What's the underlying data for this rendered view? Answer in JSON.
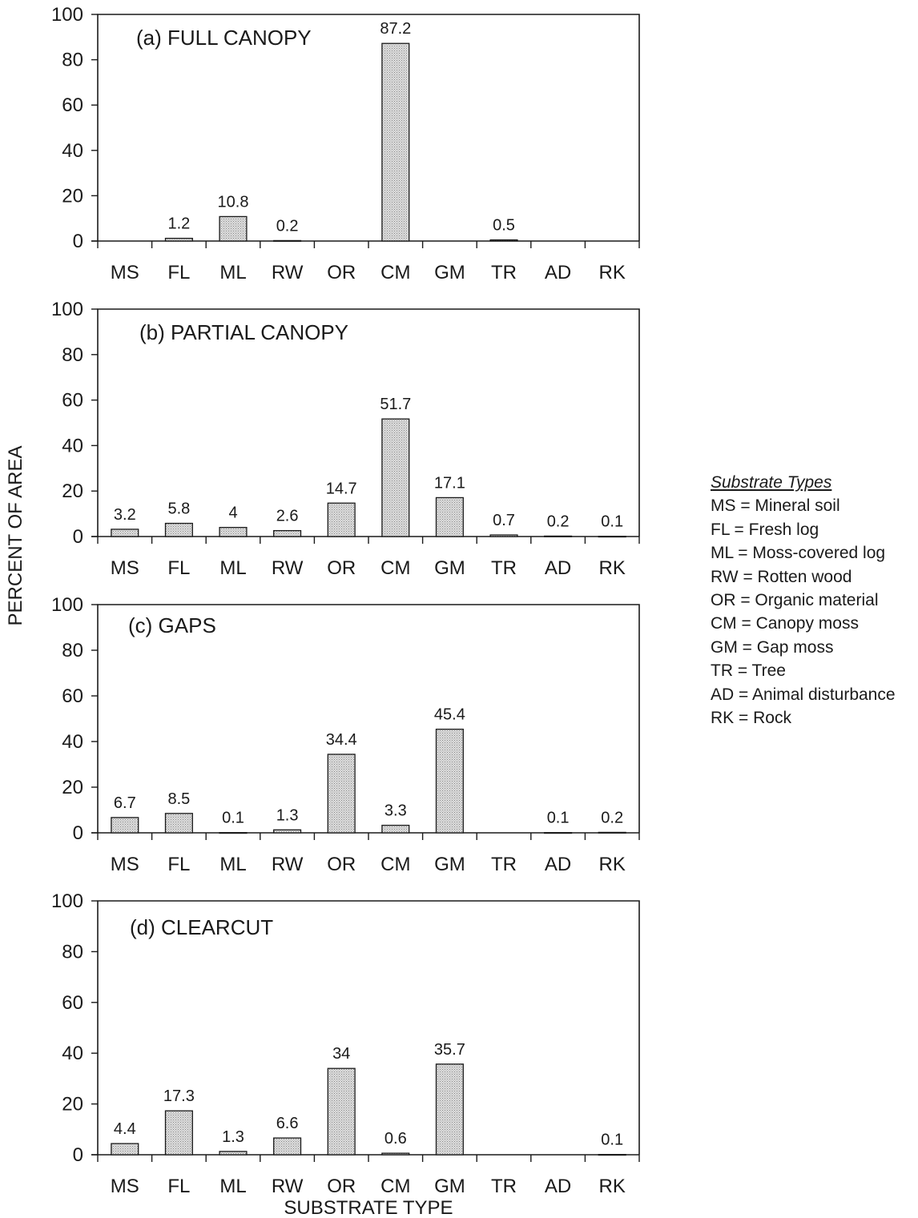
{
  "chart_data": {
    "type": "bar",
    "ylabel": "PERCENT OF AREA",
    "xlabel": "SUBSTRATE TYPE",
    "ylim": [
      0,
      100
    ],
    "yticks": [
      0,
      20,
      40,
      60,
      80,
      100
    ],
    "categories": [
      "MS",
      "FL",
      "ML",
      "RW",
      "OR",
      "CM",
      "GM",
      "TR",
      "AD",
      "RK"
    ],
    "panels": [
      {
        "title": "(a) FULL CANOPY",
        "values": [
          0,
          1.2,
          10.8,
          0.2,
          0,
          87.2,
          0,
          0.5,
          0,
          0
        ],
        "labels": [
          "",
          "1.2",
          "10.8",
          "0.2",
          "",
          "87.2",
          "",
          "0.5",
          "",
          ""
        ]
      },
      {
        "title": "(b) PARTIAL CANOPY",
        "values": [
          3.2,
          5.8,
          4,
          2.6,
          14.7,
          51.7,
          17.1,
          0.7,
          0.2,
          0.1
        ],
        "labels": [
          "3.2",
          "5.8",
          "4",
          "2.6",
          "14.7",
          "51.7",
          "17.1",
          "0.7",
          "0.2",
          "0.1"
        ]
      },
      {
        "title": "(c) GAPS",
        "values": [
          6.7,
          8.5,
          0.1,
          1.3,
          34.4,
          3.3,
          45.4,
          0,
          0.1,
          0.2
        ],
        "labels": [
          "6.7",
          "8.5",
          "0.1",
          "1.3",
          "34.4",
          "3.3",
          "45.4",
          "",
          "0.1",
          "0.2"
        ]
      },
      {
        "title": "(d) CLEARCUT",
        "values": [
          4.4,
          17.3,
          1.3,
          6.6,
          34,
          0.6,
          35.7,
          0,
          0,
          0.1
        ],
        "labels": [
          "4.4",
          "17.3",
          "1.3",
          "6.6",
          "34",
          "0.6",
          "35.7",
          "",
          "",
          "0.1"
        ]
      }
    ],
    "legend": {
      "title": "Substrate Types",
      "items": [
        "MS = Mineral soil",
        "FL = Fresh log",
        "ML = Moss-covered log",
        "RW = Rotten wood",
        "OR = Organic material",
        "CM = Canopy moss",
        "GM = Gap moss",
        "TR = Tree",
        "AD = Animal disturbance",
        "RK = Rock"
      ],
      "position": "right"
    },
    "colors": {
      "bar_fill": "#d9d9d9",
      "stroke": "#1a1a1a"
    }
  }
}
